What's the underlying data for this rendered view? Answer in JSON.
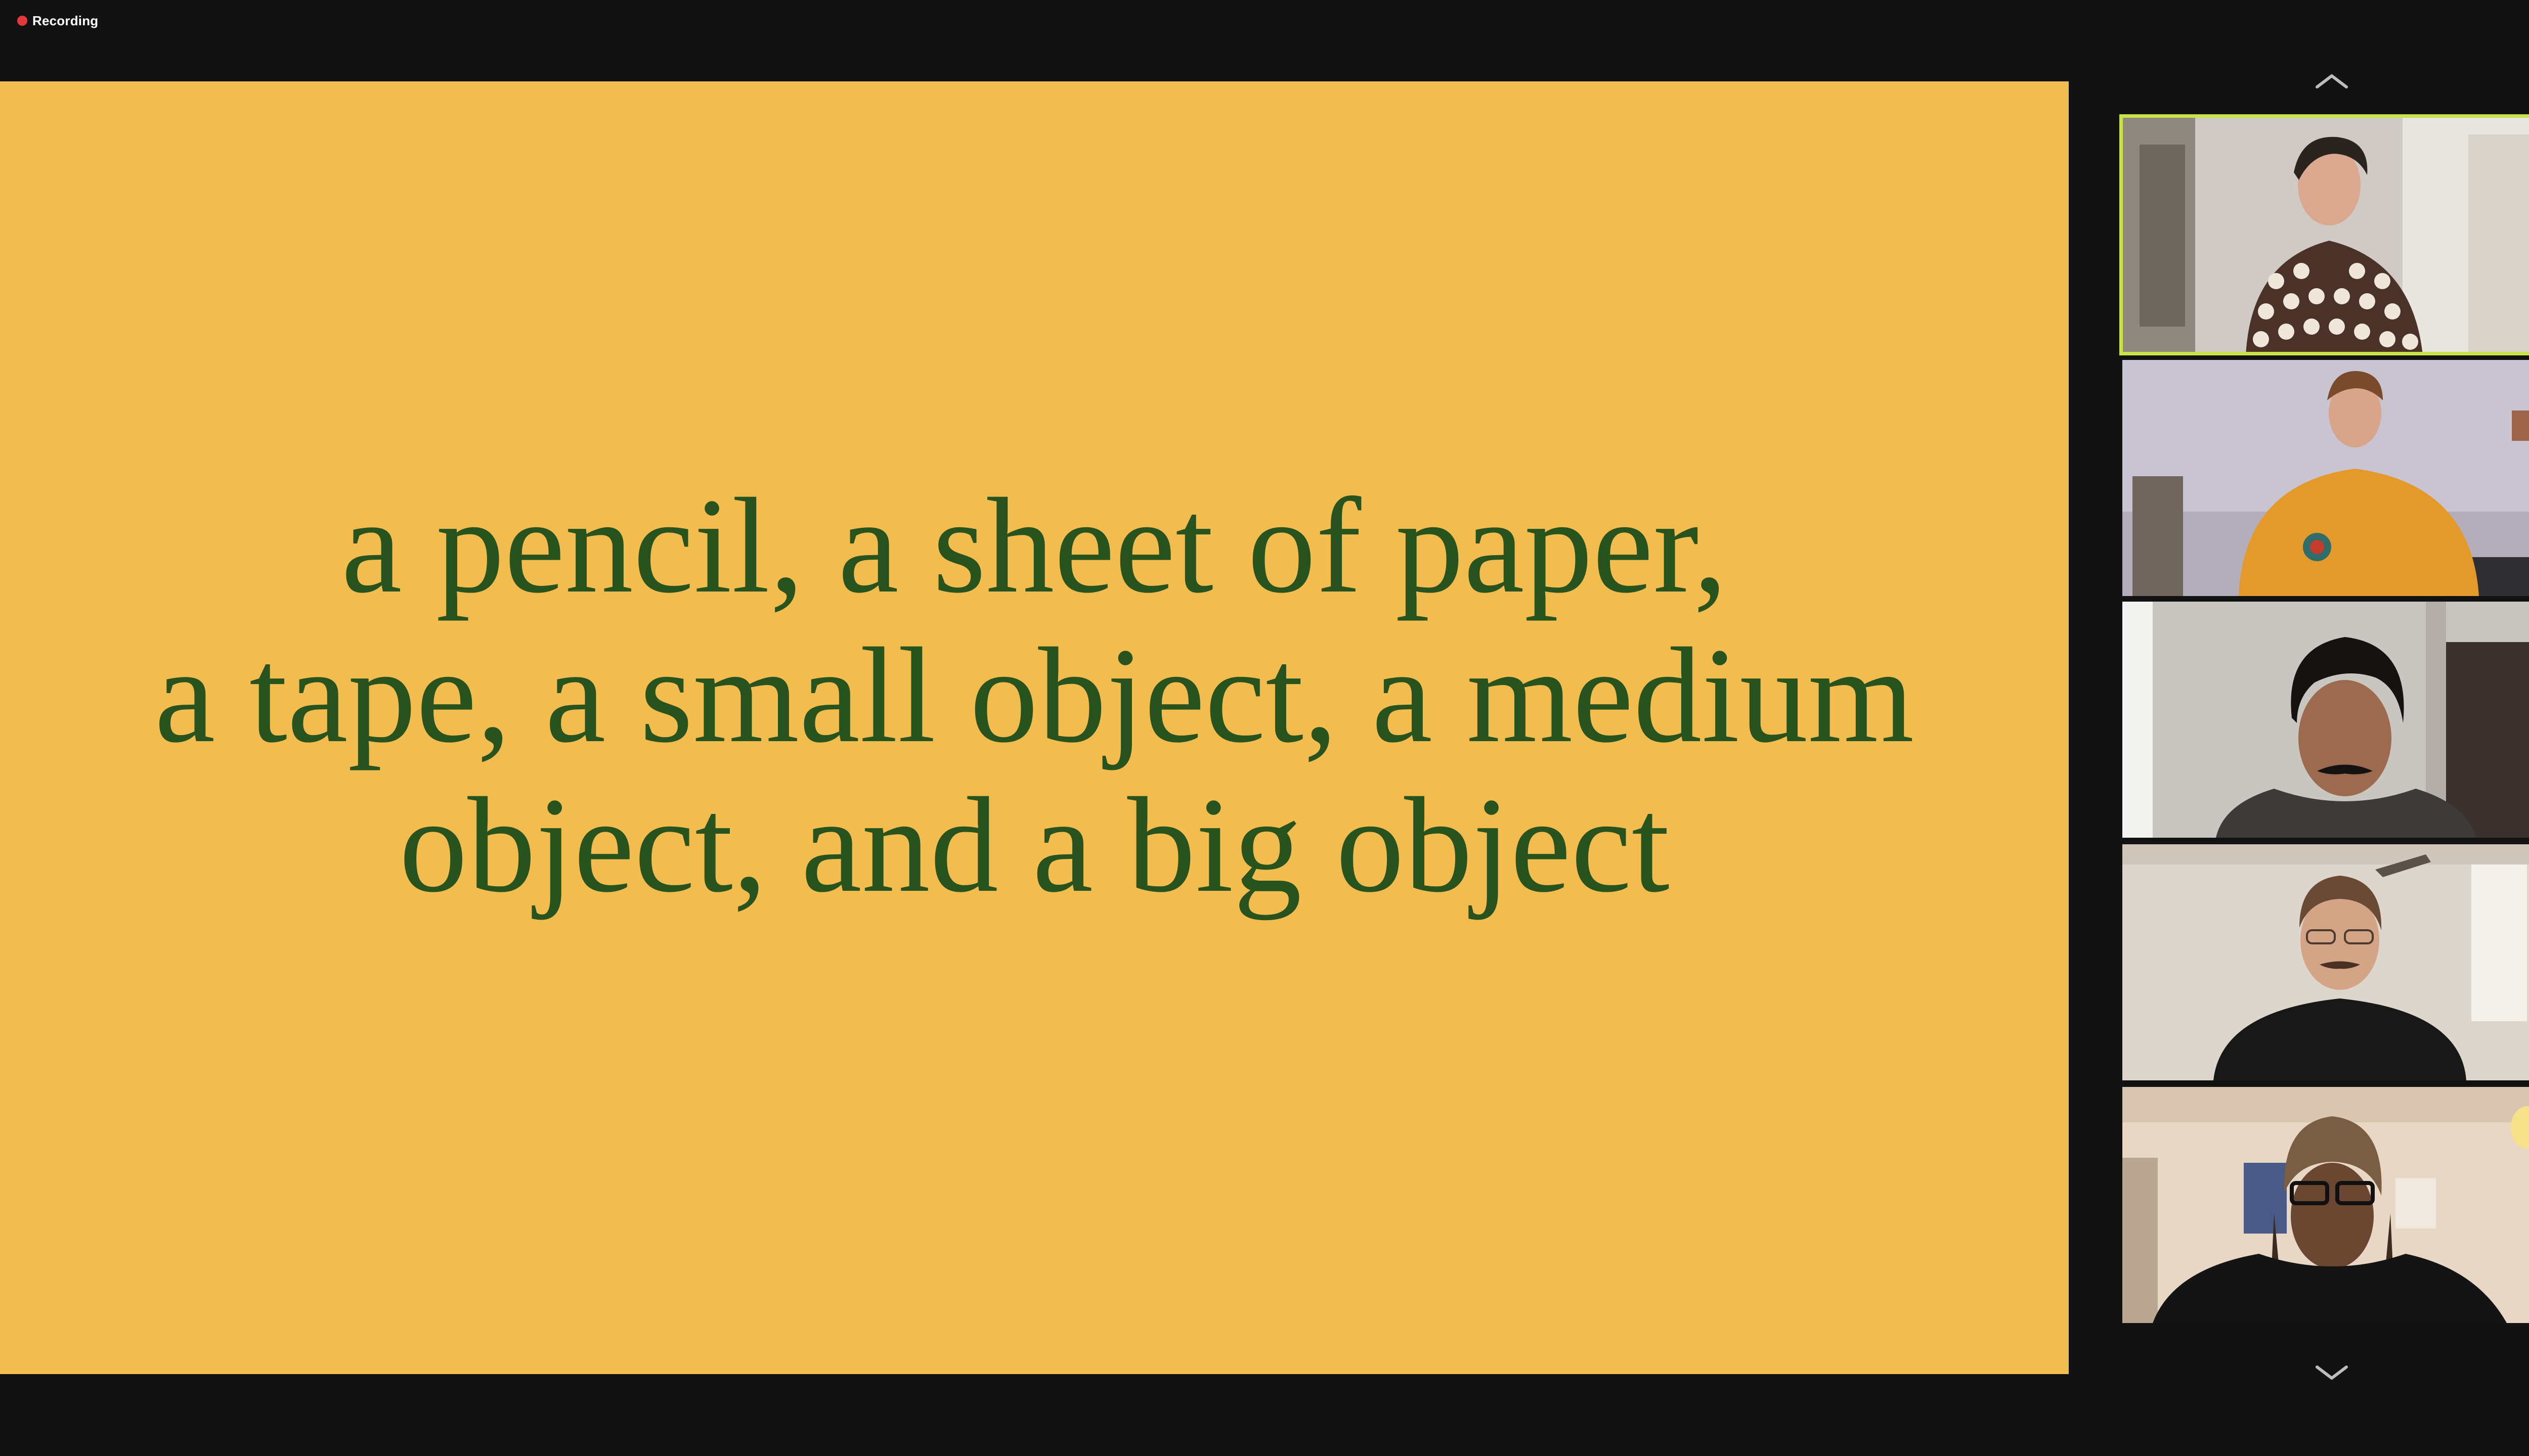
{
  "recording": {
    "label": "Recording",
    "dot_color": "#e5383b"
  },
  "slide": {
    "background": "#f3bc4f",
    "text_color": "#28521e",
    "lines": [
      "a pencil, a sheet of paper,",
      "a tape, a small object, a medium",
      "object, and a big object"
    ]
  },
  "gallery": {
    "scroll_up_icon": "chevron-up-icon",
    "scroll_down_icon": "chevron-down-icon",
    "active_speaker_border": "#c8e34a",
    "participants": [
      {
        "id": 1,
        "active": true
      },
      {
        "id": 2,
        "active": false
      },
      {
        "id": 3,
        "active": false
      },
      {
        "id": 4,
        "active": false
      },
      {
        "id": 5,
        "active": false
      }
    ]
  }
}
